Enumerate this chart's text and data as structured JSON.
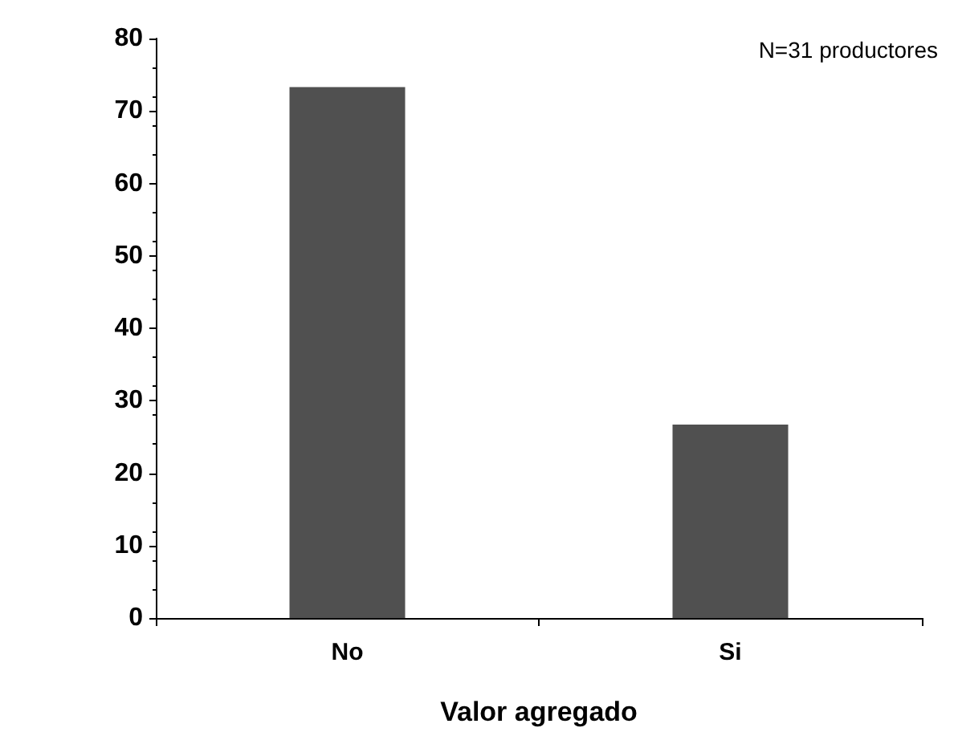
{
  "chart_data": {
    "type": "bar",
    "categories": [
      "No",
      "Si"
    ],
    "values": [
      73.3,
      26.7
    ],
    "color": "#505050",
    "xlabel": "Valor agregado",
    "annotations": [
      "N=31 productores"
    ],
    "ylim": [
      0,
      80
    ],
    "yticks": [
      0,
      10,
      20,
      30,
      40,
      50,
      60,
      70,
      80
    ],
    "grid": false
  }
}
